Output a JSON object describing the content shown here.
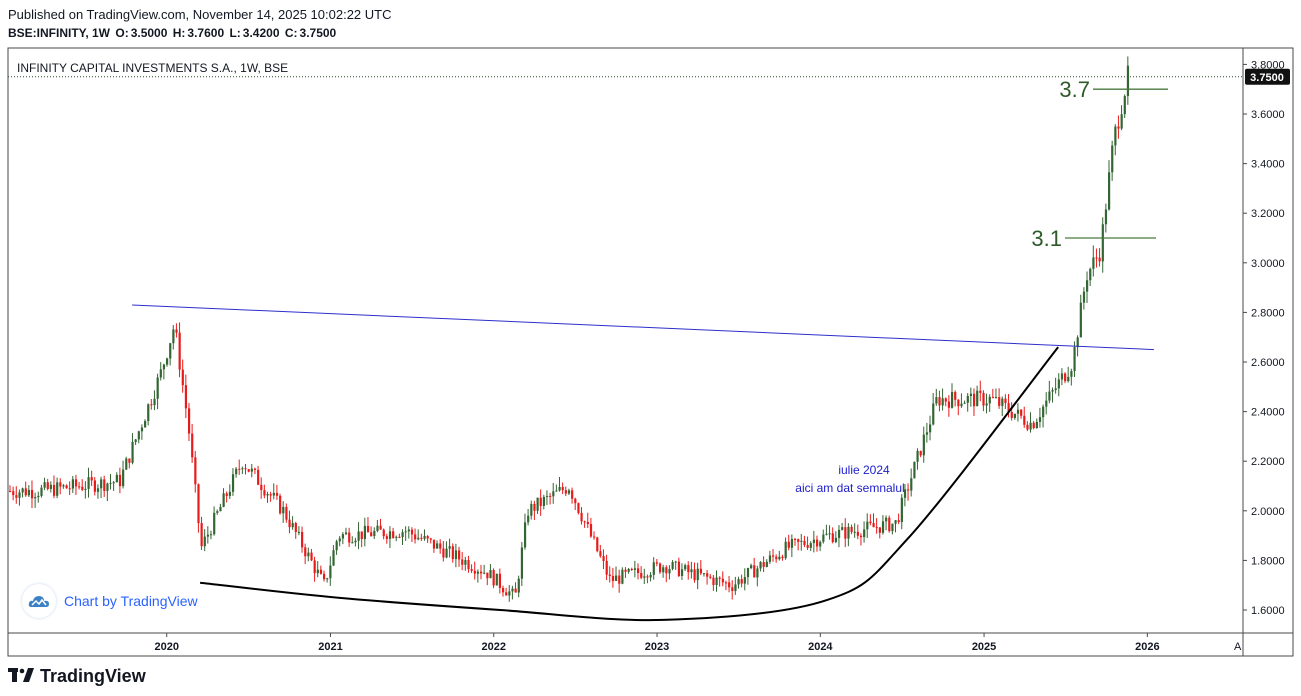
{
  "header": {
    "published": "Published on TradingView.com, November 14, 2025 10:02:22 UTC",
    "symbol": "BSE:INFINITY, 1W",
    "open_label": "O:",
    "open": "3.5000",
    "high_label": "H:",
    "high": "3.7600",
    "low_label": "L:",
    "low": "3.4200",
    "close_label": "C:",
    "close": "3.7500"
  },
  "footer": {
    "brand": "TradingView",
    "watermark": "Chart by TradingView"
  },
  "colors": {
    "up": "#336633",
    "down": "#e81b1b",
    "trendline": "#2e2ecc",
    "curve": "#000000",
    "level": "#4a7a3f",
    "text_blue": "#1c1ccc",
    "price_label_bg": "#111111"
  },
  "chart_data": {
    "type": "candlestick",
    "title": "INFINITY CAPITAL INVESTMENTS S.A., 1W, BSE",
    "x_tick_labels": [
      "2020",
      "2021",
      "2022",
      "2023",
      "2024",
      "2025",
      "2026"
    ],
    "y_tick_labels": [
      "1.6000",
      "1.8000",
      "2.0000",
      "2.2000",
      "2.4000",
      "2.6000",
      "2.8000",
      "3.0000",
      "3.2000",
      "3.4000",
      "3.6000",
      "3.8000"
    ],
    "ylim": [
      1.5,
      3.85
    ],
    "last_price": 3.75,
    "last_price_label": "3.7500",
    "approx_weekly_closes": [
      {
        "date": "2019-03",
        "close": 2.08
      },
      {
        "date": "2019-09",
        "close": 2.12
      },
      {
        "date": "2019-12",
        "close": 2.55
      },
      {
        "date": "2020-01",
        "close": 2.75
      },
      {
        "date": "2020-02",
        "close": 2.35
      },
      {
        "date": "2020-03",
        "close": 1.85
      },
      {
        "date": "2020-06",
        "close": 2.2
      },
      {
        "date": "2020-09",
        "close": 2.0
      },
      {
        "date": "2020-12",
        "close": 1.7
      },
      {
        "date": "2021-01",
        "close": 1.9
      },
      {
        "date": "2021-06",
        "close": 1.92
      },
      {
        "date": "2021-12",
        "close": 1.75
      },
      {
        "date": "2022-02",
        "close": 1.65
      },
      {
        "date": "2022-03",
        "close": 2.0
      },
      {
        "date": "2022-06",
        "close": 2.1
      },
      {
        "date": "2022-09",
        "close": 1.72
      },
      {
        "date": "2023-01",
        "close": 1.78
      },
      {
        "date": "2023-06",
        "close": 1.7
      },
      {
        "date": "2023-10",
        "close": 1.85
      },
      {
        "date": "2024-01",
        "close": 1.9
      },
      {
        "date": "2024-06",
        "close": 1.95
      },
      {
        "date": "2024-09",
        "close": 2.45
      },
      {
        "date": "2025-01",
        "close": 2.45
      },
      {
        "date": "2025-04",
        "close": 2.35
      },
      {
        "date": "2025-07",
        "close": 2.6
      },
      {
        "date": "2025-08",
        "close": 2.95
      },
      {
        "date": "2025-09",
        "close": 3.05
      },
      {
        "date": "2025-10",
        "close": 3.5
      },
      {
        "date": "2025-11",
        "close": 3.75
      }
    ],
    "trendline": {
      "start": {
        "date": "2019-10",
        "price": 2.83
      },
      "end": {
        "date": "2026-01",
        "price": 2.65
      }
    },
    "rounding_bottom_curve": [
      {
        "date": "2020-03",
        "price": 1.71
      },
      {
        "date": "2021-01",
        "price": 1.65
      },
      {
        "date": "2022-01",
        "price": 1.6
      },
      {
        "date": "2023-01",
        "price": 1.56
      },
      {
        "date": "2024-01",
        "price": 1.64
      },
      {
        "date": "2024-07",
        "price": 1.89
      },
      {
        "date": "2025-06",
        "price": 2.66
      }
    ],
    "levels": [
      {
        "label": "3.7",
        "price": 3.7
      },
      {
        "label": "3.1",
        "price": 3.1
      }
    ],
    "annotation": {
      "line1": "iulie 2024",
      "line2": "aici am dat semnalul"
    },
    "axis_corner_label": "A"
  }
}
